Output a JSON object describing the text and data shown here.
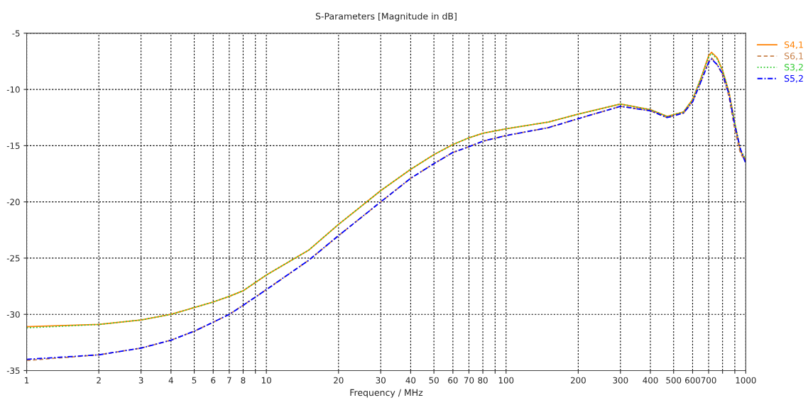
{
  "chart_data": {
    "type": "line",
    "title": "S-Parameters [Magnitude in dB]",
    "xlabel": "Frequency / MHz",
    "log": "x",
    "grid": true,
    "legend": "top right",
    "marker": "none",
    "xlim": [
      1,
      1000
    ],
    "ylim": [
      -35,
      -5
    ],
    "xticks": [
      1,
      2,
      3,
      4,
      5,
      6,
      7,
      8,
      {
        "value": 9,
        "label": null
      },
      10,
      20,
      30,
      40,
      50,
      60,
      70,
      80,
      {
        "value": 90,
        "label": null
      },
      100,
      200,
      300,
      400,
      500,
      600,
      700,
      {
        "value": 800,
        "label": null
      },
      {
        "value": 900,
        "label": null
      },
      1000
    ],
    "yticks": [
      -35,
      -30,
      -25,
      -20,
      -15,
      -10,
      -5
    ],
    "x": [
      1,
      2,
      3,
      4,
      5,
      6,
      7,
      8,
      10,
      15,
      20,
      30,
      40,
      50,
      60,
      70,
      80,
      100,
      150,
      200,
      300,
      400,
      470,
      550,
      600,
      650,
      700,
      720,
      760,
      800,
      850,
      900,
      950,
      1000
    ],
    "series": [
      {
        "name": "S4,1",
        "color": "#ff8000",
        "line_style": "solid",
        "values": [
          -31.1,
          -30.9,
          -30.5,
          -30.0,
          -29.4,
          -28.9,
          -28.4,
          -27.9,
          -26.5,
          -24.3,
          -22.0,
          -19.0,
          -17.1,
          -15.8,
          -14.9,
          -14.3,
          -13.9,
          -13.5,
          -12.9,
          -12.2,
          -11.3,
          -11.8,
          -12.4,
          -12.0,
          -10.9,
          -9.0,
          -7.0,
          -6.7,
          -7.2,
          -8.3,
          -10.2,
          -13.0,
          -15.5,
          -16.3
        ]
      },
      {
        "name": "S6,1",
        "color": "#c8824b",
        "line_style": "dashed",
        "values": [
          -34.1,
          -33.6,
          -33.0,
          -32.3,
          -31.5,
          -30.7,
          -30.0,
          -29.2,
          -27.8,
          -25.2,
          -23.0,
          -20.0,
          -17.9,
          -16.6,
          -15.6,
          -15.1,
          -14.6,
          -14.1,
          -13.4,
          -12.6,
          -11.5,
          -11.9,
          -12.5,
          -12.1,
          -11.1,
          -9.3,
          -7.5,
          -7.2,
          -7.8,
          -8.7,
          -10.6,
          -13.6,
          -15.7,
          -16.4
        ]
      },
      {
        "name": "S3,2",
        "color": "#33cc33",
        "line_style": "dotted",
        "values": [
          -31.2,
          -30.9,
          -30.5,
          -30.0,
          -29.4,
          -28.9,
          -28.4,
          -27.9,
          -26.5,
          -24.3,
          -22.0,
          -19.0,
          -17.1,
          -15.8,
          -14.9,
          -14.3,
          -13.9,
          -13.5,
          -12.9,
          -12.2,
          -11.3,
          -11.8,
          -12.4,
          -12.0,
          -10.9,
          -9.0,
          -7.1,
          -6.8,
          -7.3,
          -8.3,
          -10.2,
          -13.0,
          -15.4,
          -16.2
        ]
      },
      {
        "name": "S5,2",
        "color": "#0000ff",
        "line_style": "dashdot",
        "values": [
          -34.0,
          -33.6,
          -33.0,
          -32.3,
          -31.5,
          -30.7,
          -30.0,
          -29.2,
          -27.8,
          -25.2,
          -23.0,
          -20.0,
          -17.9,
          -16.6,
          -15.6,
          -15.1,
          -14.6,
          -14.1,
          -13.4,
          -12.6,
          -11.5,
          -11.9,
          -12.5,
          -12.1,
          -11.1,
          -9.3,
          -7.6,
          -7.3,
          -7.8,
          -8.6,
          -10.4,
          -13.2,
          -15.3,
          -16.6
        ]
      }
    ]
  }
}
